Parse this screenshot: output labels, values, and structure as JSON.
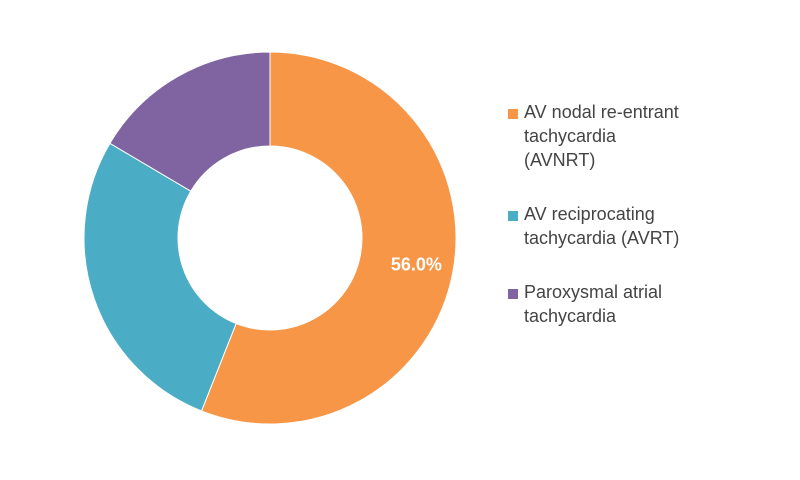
{
  "chart_data": {
    "type": "pie",
    "variant": "donut",
    "categories": [
      "AV nodal re-entrant\ntachycardia\n(AVNRT)",
      "AV reciprocating\ntachycardia (AVRT)",
      "Paroxysmal atrial\ntachycardia"
    ],
    "values": [
      56.0,
      27.5,
      16.5
    ],
    "value_unit": "%",
    "data_labels": [
      "56.0%",
      "",
      ""
    ],
    "colors": [
      "#F79646",
      "#4BACC6",
      "#8064A2"
    ],
    "legend_position": "right",
    "title": ""
  }
}
